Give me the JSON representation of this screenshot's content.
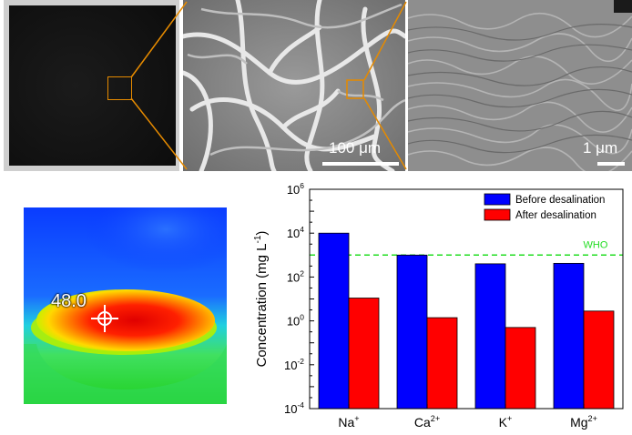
{
  "images": {
    "sem_low_mag_scale": "100 μm",
    "sem_high_mag_scale": "1 μm",
    "thermal_reading": "48.0"
  },
  "chart_data": {
    "type": "bar",
    "scale": "log",
    "categories": [
      "Na+",
      "Ca2+",
      "K+",
      "Mg2+"
    ],
    "category_labels": [
      {
        "base": "Na",
        "sup": "+"
      },
      {
        "base": "Ca",
        "sup": "2+"
      },
      {
        "base": "K",
        "sup": "+"
      },
      {
        "base": "Mg",
        "sup": "2+"
      }
    ],
    "series": [
      {
        "name": "Before desalination",
        "color": "#0000ff",
        "values": [
          10000,
          1000,
          400,
          420
        ]
      },
      {
        "name": "After desalination",
        "color": "#ff0000",
        "values": [
          11,
          1.4,
          0.5,
          2.8
        ]
      }
    ],
    "reference_line": {
      "label": "WHO",
      "value": 1000,
      "color": "#22dd22"
    },
    "ylabel": "Concentration (mg L-1)",
    "ylabel_parts": {
      "main": "Concentration (mg L",
      "sup": "-1",
      "end": ")"
    },
    "ylim": [
      0.0001,
      1000000
    ],
    "y_ticks": [
      {
        "exp": -4,
        "label": "10",
        "sup": "-4"
      },
      {
        "exp": -2,
        "label": "10",
        "sup": "-2"
      },
      {
        "exp": 0,
        "label": "10",
        "sup": "0"
      },
      {
        "exp": 2,
        "label": "10",
        "sup": "2"
      },
      {
        "exp": 4,
        "label": "10",
        "sup": "4"
      },
      {
        "exp": 6,
        "label": "10",
        "sup": "6"
      }
    ],
    "legend_position": "top-right",
    "grid": false
  }
}
